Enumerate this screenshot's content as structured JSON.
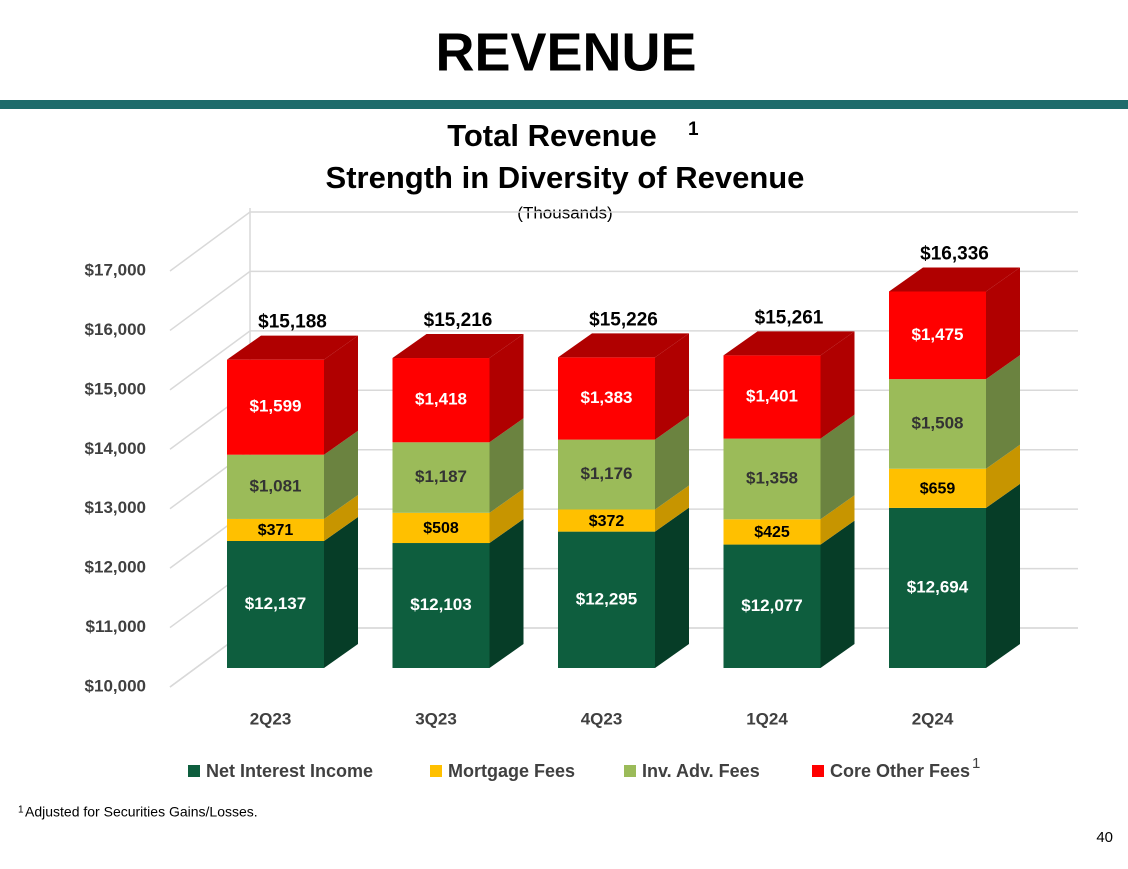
{
  "header": {
    "title": "REVENUE"
  },
  "chart_data": {
    "type": "bar3d_stacked",
    "title": "Total Revenue",
    "title_note": "1",
    "subtitle": "Strength in Diversity of Revenue",
    "units": "(Thousands)",
    "categories": [
      "2Q23",
      "3Q23",
      "4Q23",
      "1Q24",
      "2Q24"
    ],
    "series": [
      {
        "name": "Net Interest Income",
        "color": "#0e5e3e",
        "side_color": "#063d27",
        "label_color": "#ffffff",
        "values": [
          12137,
          12103,
          12295,
          12077,
          12694
        ],
        "value_labels": [
          "$12,137",
          "$12,103",
          "$12,295",
          "$12,077",
          "$12,694"
        ]
      },
      {
        "name": "Mortgage Fees",
        "color": "#ffc000",
        "side_color": "#c79500",
        "label_color": "#000000",
        "values": [
          371,
          508,
          372,
          425,
          659
        ],
        "value_labels": [
          "$371",
          "$508",
          "$372",
          "$425",
          "$659"
        ]
      },
      {
        "name": "Inv. Adv. Fees",
        "color": "#9bbb59",
        "side_color": "#6b8340",
        "label_color": "#333333",
        "values": [
          1081,
          1187,
          1176,
          1358,
          1508
        ],
        "value_labels": [
          "$1,081",
          "$1,187",
          "$1,176",
          "$1,358",
          "$1,508"
        ]
      },
      {
        "name": "Core Other Fees",
        "color": "#ff0000",
        "side_color": "#b00000",
        "label_color": "#ffffff",
        "values": [
          1599,
          1418,
          1383,
          1401,
          1475
        ],
        "value_labels": [
          "$1,599",
          "$1,418",
          "$1,383",
          "$1,401",
          "$1,475"
        ]
      }
    ],
    "legend_note": "1",
    "totals": [
      15188,
      15216,
      15226,
      15261,
      16336
    ],
    "total_labels": [
      "$15,188",
      "$15,216",
      "$15,226",
      "$15,261",
      "$16,336"
    ],
    "ylim": [
      10000,
      17000
    ],
    "yticks": [
      {
        "value": 10000,
        "label": "$10,000"
      },
      {
        "value": 11000,
        "label": "$11,000"
      },
      {
        "value": 12000,
        "label": "$12,000"
      },
      {
        "value": 13000,
        "label": "$13,000"
      },
      {
        "value": 14000,
        "label": "$14,000"
      },
      {
        "value": 15000,
        "label": "$15,000"
      },
      {
        "value": 16000,
        "label": "$16,000"
      },
      {
        "value": 17000,
        "label": "$17,000"
      }
    ],
    "grid": true
  },
  "footnote": {
    "marker": "1",
    "text": "Adjusted for Securities Gains/Losses."
  },
  "page_number": "40"
}
